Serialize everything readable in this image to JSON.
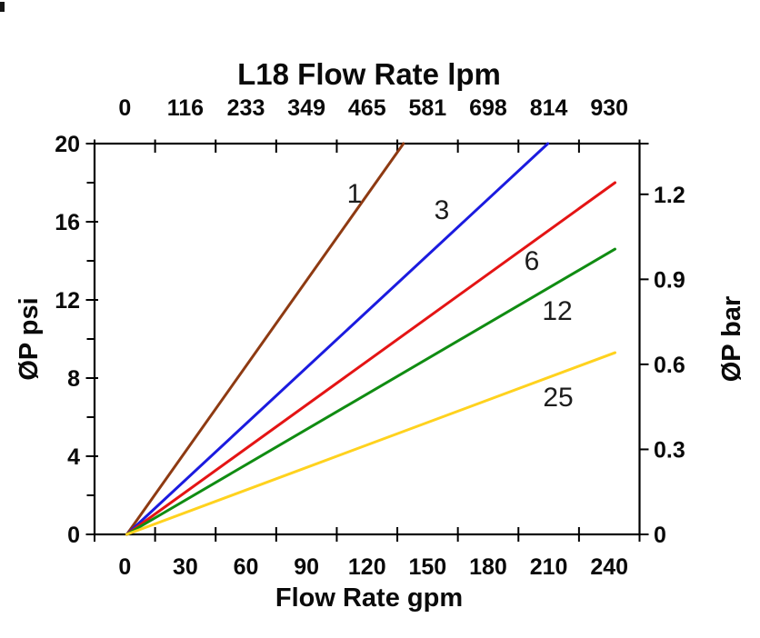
{
  "chart_data": {
    "type": "line",
    "title": "L18 Flow Rate lpm",
    "top_axis": {
      "unit": "lpm",
      "tick_labels": [
        "0",
        "116",
        "233",
        "349",
        "465",
        "581",
        "698",
        "814",
        "930"
      ]
    },
    "bottom_axis": {
      "title": "Flow Rate gpm",
      "unit": "gpm",
      "tick_labels": [
        "0",
        "30",
        "60",
        "90",
        "120",
        "150",
        "180",
        "210",
        "240"
      ],
      "range": [
        0,
        240
      ]
    },
    "left_axis": {
      "title": "ØP psi",
      "unit": "psi",
      "tick_labels": [
        "0",
        "4",
        "8",
        "12",
        "16",
        "20"
      ],
      "range": [
        0,
        20
      ],
      "minor_tick_step": 2
    },
    "right_axis": {
      "title": "ØP bar",
      "unit": "bar",
      "tick_labels": [
        "0",
        "0.3",
        "0.6",
        "0.9",
        "1.2"
      ],
      "range": [
        0,
        1.38
      ]
    },
    "grid": false,
    "legend": "inline-labels",
    "series": [
      {
        "name": "1",
        "color": "#8E3A12",
        "points": [
          {
            "gpm": 0,
            "psi": 0
          },
          {
            "gpm": 136,
            "psi": 20
          }
        ]
      },
      {
        "name": "3",
        "color": "#1B1BDF",
        "points": [
          {
            "gpm": 0,
            "psi": 0
          },
          {
            "gpm": 207,
            "psi": 20
          }
        ]
      },
      {
        "name": "6",
        "color": "#E41414",
        "points": [
          {
            "gpm": 0,
            "psi": 0
          },
          {
            "gpm": 240,
            "psi": 18
          }
        ]
      },
      {
        "name": "12",
        "color": "#108C12",
        "points": [
          {
            "gpm": 0,
            "psi": 0
          },
          {
            "gpm": 240,
            "psi": 14.6
          }
        ]
      },
      {
        "name": "25",
        "color": "#FFD21E",
        "points": [
          {
            "gpm": 0,
            "psi": 0
          },
          {
            "gpm": 240,
            "psi": 9.3
          }
        ]
      }
    ]
  }
}
